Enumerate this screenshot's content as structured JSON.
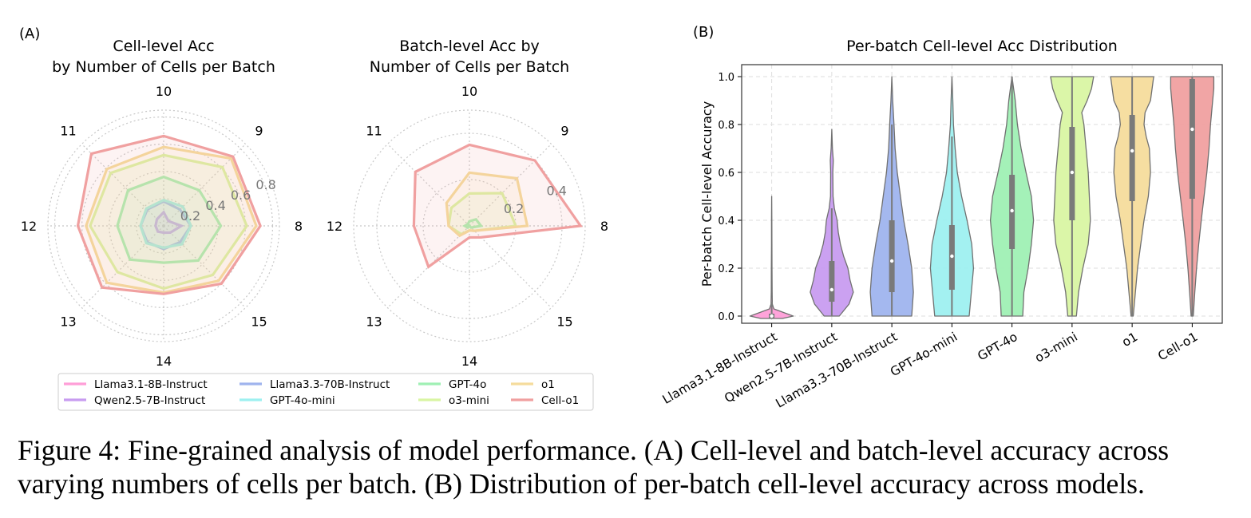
{
  "panel_a_label": "(A)",
  "panel_b_label": "(B)",
  "caption": {
    "line1": "Figure 4: Fine-grained analysis of model performance. (A) Cell-level and batch-level accuracy across",
    "line2": "varying numbers of cells per batch. (B) Distribution of per-batch cell-level accuracy across models."
  },
  "models": [
    {
      "name": "Llama3.1-8B-Instruct",
      "color": "#ff9ed8"
    },
    {
      "name": "Qwen2.5-7B-Instruct",
      "color": "#c89cf0"
    },
    {
      "name": "Llama3.3-70B-Instruct",
      "color": "#9fb4ee"
    },
    {
      "name": "GPT-4o-mini",
      "color": "#9ef0f0"
    },
    {
      "name": "GPT-4o",
      "color": "#9ff0b4"
    },
    {
      "name": "o3-mini",
      "color": "#d9f5a3"
    },
    {
      "name": "o1",
      "color": "#f5dc9c"
    },
    {
      "name": "Cell-o1",
      "color": "#f0a0a0"
    }
  ],
  "chart_data": [
    {
      "type": "radar",
      "title": [
        "Cell-level Acc",
        "by Number of Cells per Batch"
      ],
      "categories": [
        "8",
        "9",
        "10",
        "11",
        "12",
        "13",
        "14",
        "15"
      ],
      "rlim": [
        0,
        0.85
      ],
      "rticks": [
        "0.2",
        "0.4",
        "0.6",
        "0.8"
      ],
      "series": [
        {
          "name": "Llama3.1-8B-Instruct",
          "values": [
            0.0,
            0.0,
            0.0,
            0.0,
            0.0,
            0.0,
            0.0,
            0.0
          ]
        },
        {
          "name": "Qwen2.5-7B-Instruct",
          "values": [
            0.13,
            0.05,
            0.1,
            0.07,
            0.06,
            0.06,
            0.05,
            0.07
          ]
        },
        {
          "name": "Llama3.3-70B-Instruct",
          "values": [
            0.2,
            0.17,
            0.18,
            0.17,
            0.17,
            0.17,
            0.17,
            0.17
          ]
        },
        {
          "name": "GPT-4o-mini",
          "values": [
            0.2,
            0.2,
            0.19,
            0.18,
            0.17,
            0.18,
            0.16,
            0.19
          ]
        },
        {
          "name": "GPT-4o",
          "values": [
            0.42,
            0.37,
            0.36,
            0.37,
            0.34,
            0.35,
            0.27,
            0.36
          ]
        },
        {
          "name": "o3-mini",
          "values": [
            0.61,
            0.61,
            0.52,
            0.55,
            0.54,
            0.48,
            0.46,
            0.51
          ]
        },
        {
          "name": "o1",
          "values": [
            0.68,
            0.7,
            0.58,
            0.59,
            0.57,
            0.59,
            0.49,
            0.57
          ]
        },
        {
          "name": "Cell-o1",
          "values": [
            0.71,
            0.72,
            0.66,
            0.75,
            0.63,
            0.64,
            0.5,
            0.6
          ]
        }
      ]
    },
    {
      "type": "radar",
      "title": [
        "Batch-level Acc by",
        "Number of Cells per Batch"
      ],
      "categories": [
        "8",
        "9",
        "10",
        "11",
        "12",
        "13",
        "14",
        "15"
      ],
      "rlim": [
        0,
        0.5
      ],
      "rticks": [
        "0.2",
        "0.4"
      ],
      "series": [
        {
          "name": "Llama3.1-8B-Instruct",
          "values": [
            0,
            0,
            0,
            0,
            0,
            0,
            0,
            0
          ]
        },
        {
          "name": "Qwen2.5-7B-Instruct",
          "values": [
            0,
            0,
            0,
            0,
            0,
            0,
            0,
            0
          ]
        },
        {
          "name": "Llama3.3-70B-Instruct",
          "values": [
            0,
            0,
            0,
            0,
            0,
            0,
            0,
            0
          ]
        },
        {
          "name": "GPT-4o-mini",
          "values": [
            0,
            0,
            0,
            0,
            0,
            0,
            0,
            0
          ]
        },
        {
          "name": "GPT-4o",
          "values": [
            0.05,
            0.04,
            0.02,
            0.01,
            0.02,
            0.01,
            0.0,
            0.01
          ]
        },
        {
          "name": "o3-mini",
          "values": [
            0.2,
            0.2,
            0.14,
            0.11,
            0.09,
            0.05,
            0.02,
            0.03
          ]
        },
        {
          "name": "o1",
          "values": [
            0.25,
            0.29,
            0.23,
            0.14,
            0.09,
            0.06,
            0.02,
            0.03
          ]
        },
        {
          "name": "Cell-o1",
          "values": [
            0.48,
            0.4,
            0.35,
            0.33,
            0.24,
            0.25,
            0.05,
            0.07
          ]
        }
      ]
    },
    {
      "type": "violin",
      "title": "Per-batch Cell-level Acc Distribution",
      "ylabel": "Per-batch Cell-level Accuracy",
      "ylim": [
        -0.03,
        1.05
      ],
      "yticks": [
        "0.0",
        "0.2",
        "0.4",
        "0.6",
        "0.8",
        "1.0"
      ],
      "categories": [
        "Llama3.1-8B-Instruct",
        "Qwen2.5-7B-Instruct",
        "Llama3.3-70B-Instruct",
        "GPT-4o-mini",
        "GPT-4o",
        "o3-mini",
        "o1",
        "Cell-o1"
      ],
      "distributions": [
        {
          "name": "Llama3.1-8B-Instruct",
          "min": -0.01,
          "max": 0.5,
          "q1": -0.01,
          "median": 0.0,
          "q3": 0.01,
          "whisker_low": -0.01,
          "whisker_high": 0.06,
          "density": [
            [
              -0.01,
              0.5
            ],
            [
              0.0,
              1.0
            ],
            [
              0.01,
              0.7
            ],
            [
              0.03,
              0.1
            ],
            [
              0.05,
              0.03
            ],
            [
              0.1,
              0.02
            ],
            [
              0.2,
              0.015
            ],
            [
              0.3,
              0.01
            ],
            [
              0.4,
              0.008
            ],
            [
              0.5,
              0.0
            ]
          ]
        },
        {
          "name": "Qwen2.5-7B-Instruct",
          "min": 0.0,
          "max": 0.78,
          "q1": 0.06,
          "median": 0.11,
          "q3": 0.23,
          "whisker_low": 0.0,
          "whisker_high": 0.45,
          "density": [
            [
              0.0,
              0.35
            ],
            [
              0.05,
              0.8
            ],
            [
              0.1,
              1.0
            ],
            [
              0.15,
              0.85
            ],
            [
              0.2,
              0.75
            ],
            [
              0.25,
              0.55
            ],
            [
              0.3,
              0.4
            ],
            [
              0.35,
              0.3
            ],
            [
              0.4,
              0.25
            ],
            [
              0.45,
              0.12
            ],
            [
              0.5,
              0.06
            ],
            [
              0.6,
              0.05
            ],
            [
              0.65,
              0.07
            ],
            [
              0.7,
              0.03
            ],
            [
              0.78,
              0.0
            ]
          ]
        },
        {
          "name": "Llama3.3-70B-Instruct",
          "min": 0.0,
          "max": 1.0,
          "q1": 0.1,
          "median": 0.23,
          "q3": 0.4,
          "whisker_low": 0.0,
          "whisker_high": 0.8,
          "density": [
            [
              0.0,
              0.92
            ],
            [
              0.1,
              1.0
            ],
            [
              0.2,
              0.92
            ],
            [
              0.3,
              0.75
            ],
            [
              0.4,
              0.55
            ],
            [
              0.5,
              0.4
            ],
            [
              0.6,
              0.25
            ],
            [
              0.7,
              0.15
            ],
            [
              0.8,
              0.1
            ],
            [
              0.9,
              0.04
            ],
            [
              1.0,
              0.0
            ]
          ]
        },
        {
          "name": "GPT-4o-mini",
          "min": 0.0,
          "max": 1.0,
          "q1": 0.11,
          "median": 0.25,
          "q3": 0.38,
          "whisker_low": 0.0,
          "whisker_high": 0.75,
          "density": [
            [
              0.0,
              0.8
            ],
            [
              0.1,
              0.9
            ],
            [
              0.2,
              1.0
            ],
            [
              0.3,
              0.92
            ],
            [
              0.4,
              0.7
            ],
            [
              0.5,
              0.45
            ],
            [
              0.6,
              0.25
            ],
            [
              0.7,
              0.15
            ],
            [
              0.8,
              0.07
            ],
            [
              0.9,
              0.04
            ],
            [
              1.0,
              0.0
            ]
          ]
        },
        {
          "name": "GPT-4o",
          "min": 0.0,
          "max": 1.0,
          "q1": 0.28,
          "median": 0.44,
          "q3": 0.59,
          "whisker_low": 0.0,
          "whisker_high": 1.0,
          "density": [
            [
              0.0,
              0.5
            ],
            [
              0.1,
              0.55
            ],
            [
              0.2,
              0.75
            ],
            [
              0.3,
              0.9
            ],
            [
              0.4,
              1.0
            ],
            [
              0.5,
              0.9
            ],
            [
              0.6,
              0.65
            ],
            [
              0.7,
              0.42
            ],
            [
              0.8,
              0.25
            ],
            [
              0.9,
              0.15
            ],
            [
              1.0,
              0.0
            ]
          ]
        },
        {
          "name": "o3-mini",
          "min": 0.0,
          "max": 1.0,
          "q1": 0.4,
          "median": 0.6,
          "q3": 0.79,
          "whisker_low": 0.0,
          "whisker_high": 1.0,
          "density": [
            [
              0.0,
              0.2
            ],
            [
              0.1,
              0.3
            ],
            [
              0.2,
              0.5
            ],
            [
              0.3,
              0.75
            ],
            [
              0.4,
              0.85
            ],
            [
              0.5,
              0.8
            ],
            [
              0.6,
              0.75
            ],
            [
              0.7,
              0.65
            ],
            [
              0.8,
              0.55
            ],
            [
              0.85,
              0.45
            ],
            [
              0.9,
              0.7
            ],
            [
              0.95,
              0.9
            ],
            [
              1.0,
              1.0
            ]
          ]
        },
        {
          "name": "o1",
          "min": 0.0,
          "max": 1.0,
          "q1": 0.48,
          "median": 0.69,
          "q3": 0.84,
          "whisker_low": 0.0,
          "whisker_high": 1.0,
          "density": [
            [
              0.0,
              0.05
            ],
            [
              0.1,
              0.15
            ],
            [
              0.2,
              0.25
            ],
            [
              0.3,
              0.4
            ],
            [
              0.4,
              0.55
            ],
            [
              0.5,
              0.75
            ],
            [
              0.6,
              0.85
            ],
            [
              0.7,
              0.8
            ],
            [
              0.75,
              0.65
            ],
            [
              0.8,
              0.55
            ],
            [
              0.85,
              0.6
            ],
            [
              0.9,
              0.85
            ],
            [
              1.0,
              1.0
            ]
          ]
        },
        {
          "name": "Cell-o1",
          "min": 0.0,
          "max": 1.0,
          "q1": 0.49,
          "median": 0.78,
          "q3": 0.99,
          "whisker_low": 0.0,
          "whisker_high": 1.0,
          "density": [
            [
              0.0,
              0.05
            ],
            [
              0.1,
              0.12
            ],
            [
              0.2,
              0.2
            ],
            [
              0.3,
              0.3
            ],
            [
              0.4,
              0.42
            ],
            [
              0.5,
              0.55
            ],
            [
              0.6,
              0.68
            ],
            [
              0.7,
              0.78
            ],
            [
              0.8,
              0.85
            ],
            [
              0.9,
              0.95
            ],
            [
              0.95,
              1.0
            ],
            [
              1.0,
              1.0
            ]
          ]
        }
      ]
    }
  ]
}
